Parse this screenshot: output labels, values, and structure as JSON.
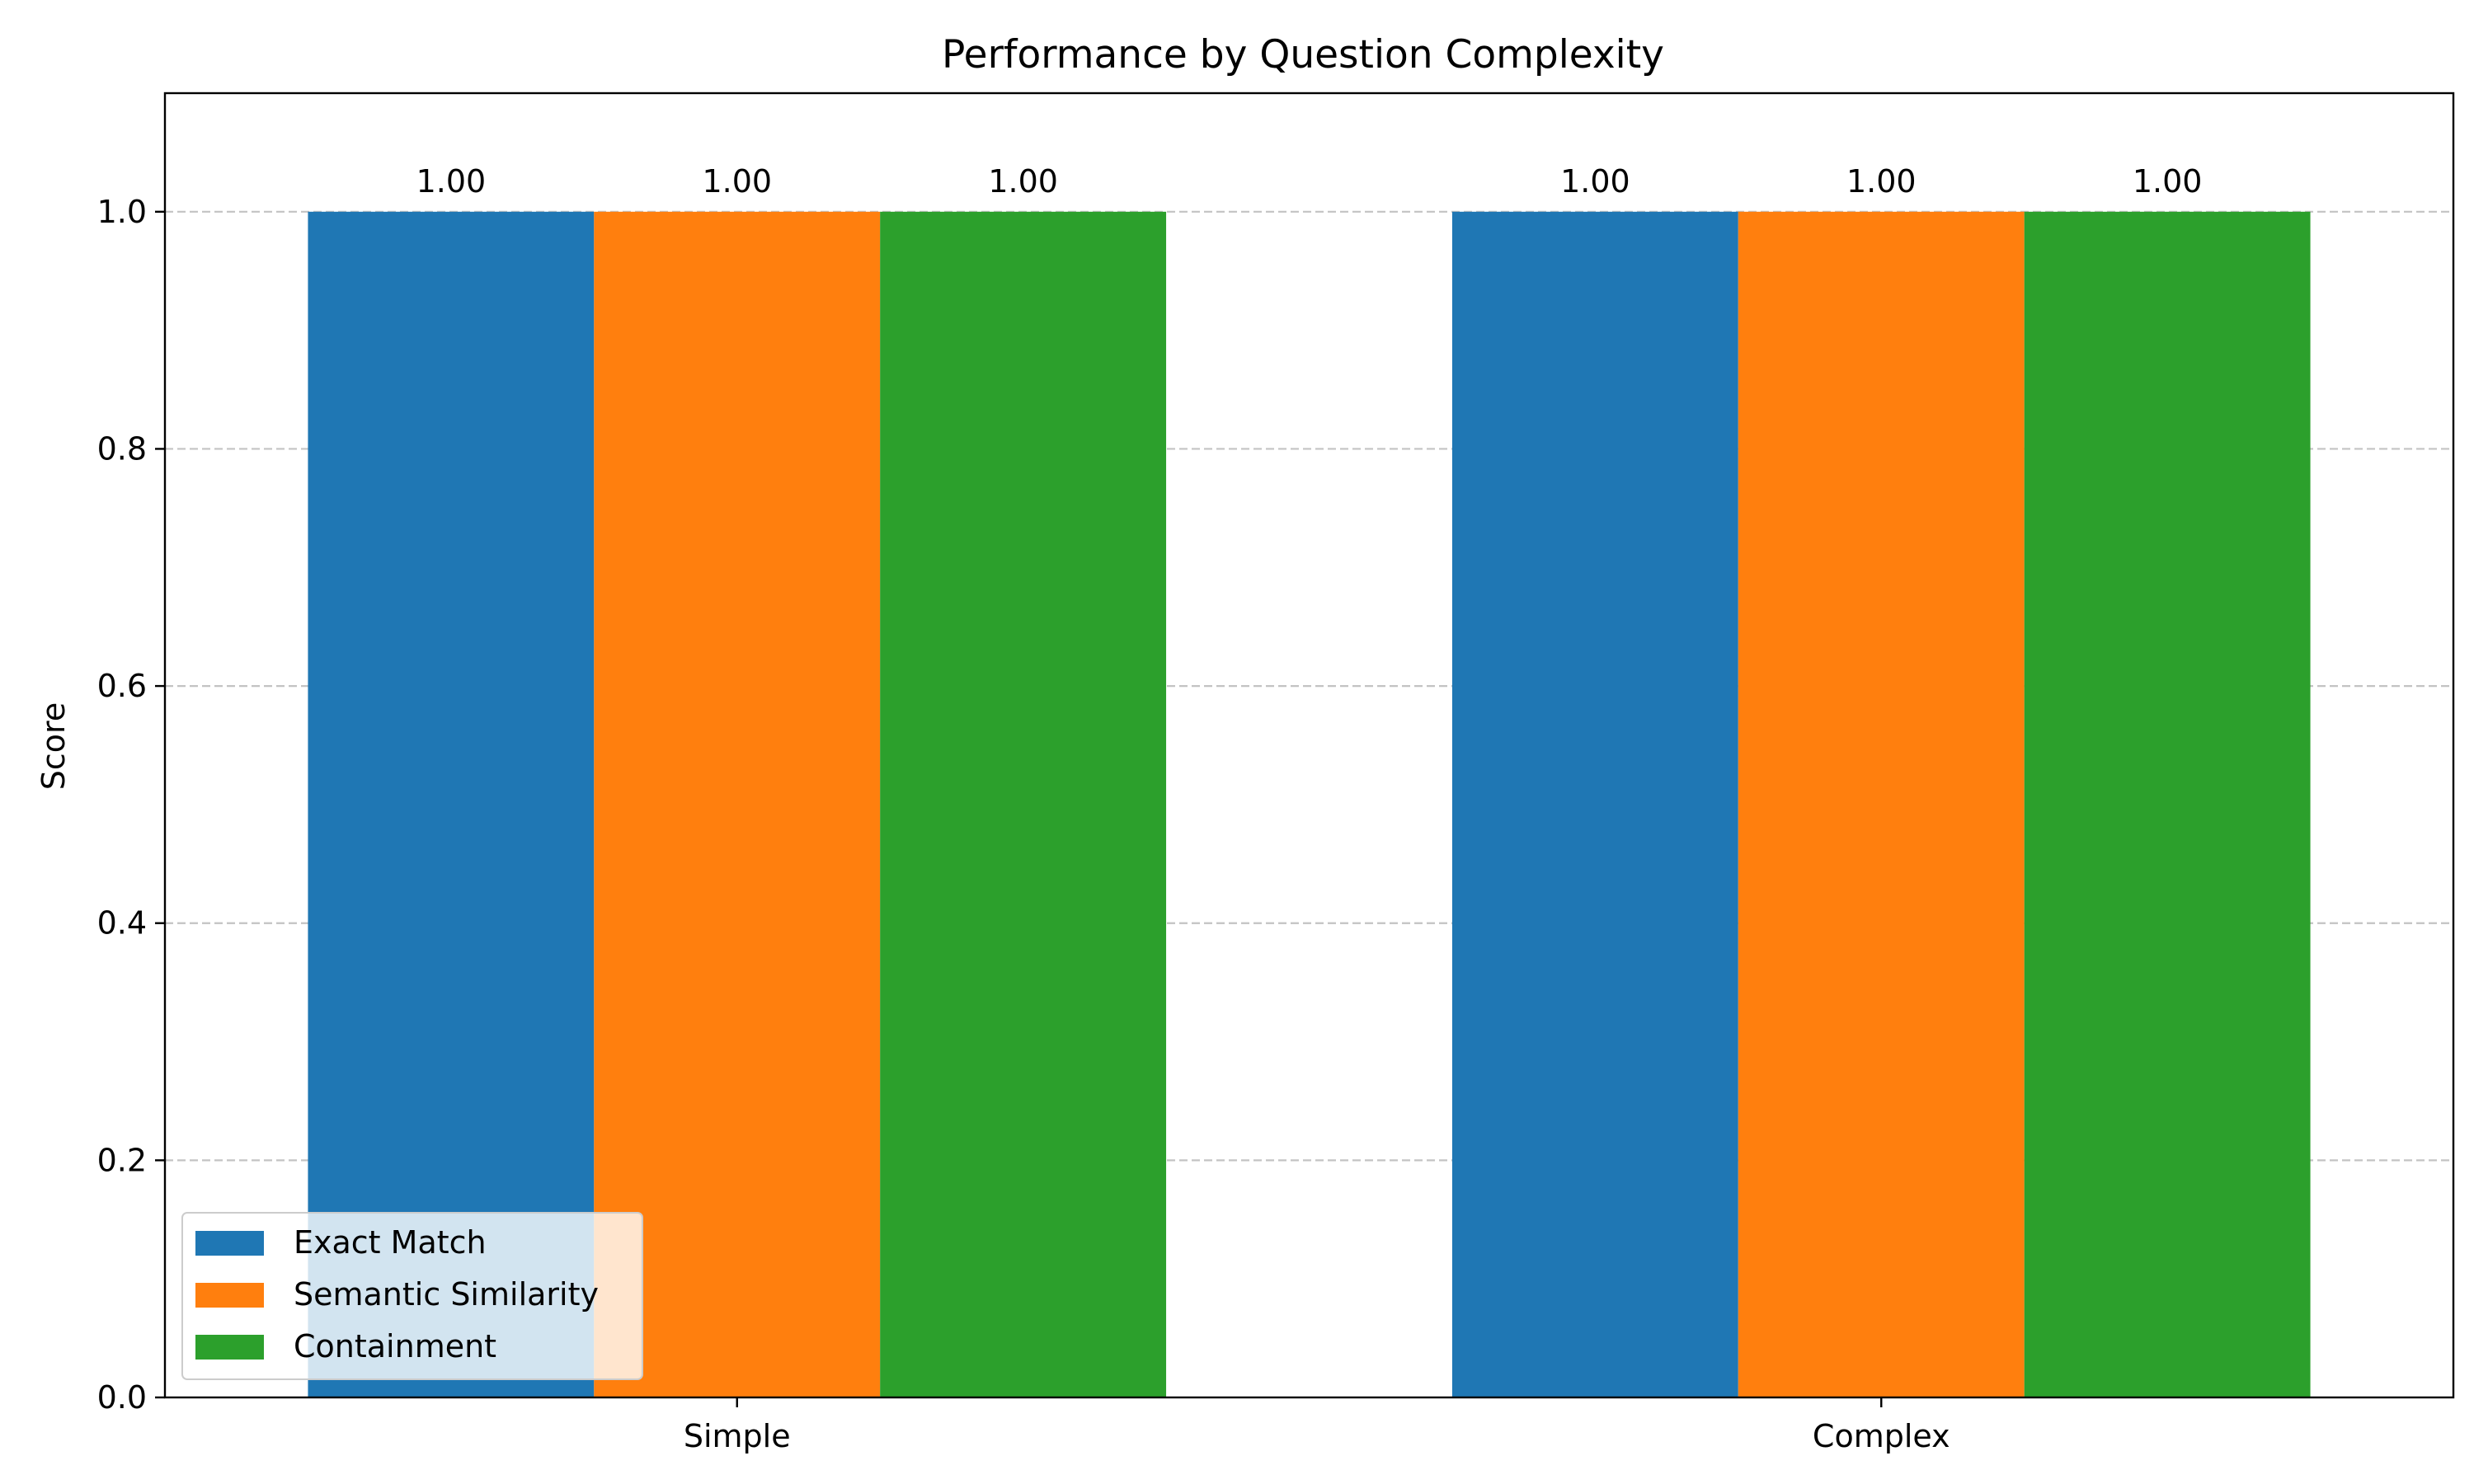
{
  "chart_data": {
    "type": "bar",
    "title": "Performance by Question Complexity",
    "xlabel": "",
    "ylabel": "Score",
    "categories": [
      "Simple",
      "Complex"
    ],
    "series": [
      {
        "name": "Exact Match",
        "values": [
          1.0,
          1.0
        ],
        "color": "#1f77b4"
      },
      {
        "name": "Semantic Similarity",
        "values": [
          1.0,
          1.0
        ],
        "color": "#ff7f0e"
      },
      {
        "name": "Containment",
        "values": [
          1.0,
          1.0
        ],
        "color": "#2ca02c"
      }
    ],
    "data_labels": [
      [
        "1.00",
        "1.00"
      ],
      [
        "1.00",
        "1.00"
      ],
      [
        "1.00",
        "1.00"
      ]
    ],
    "ylim": [
      0,
      1.1
    ],
    "yticks": [
      "0.0",
      "0.2",
      "0.4",
      "0.6",
      "0.8",
      "1.0"
    ],
    "grid": "y-dashed",
    "legend_position": "lower-left"
  }
}
